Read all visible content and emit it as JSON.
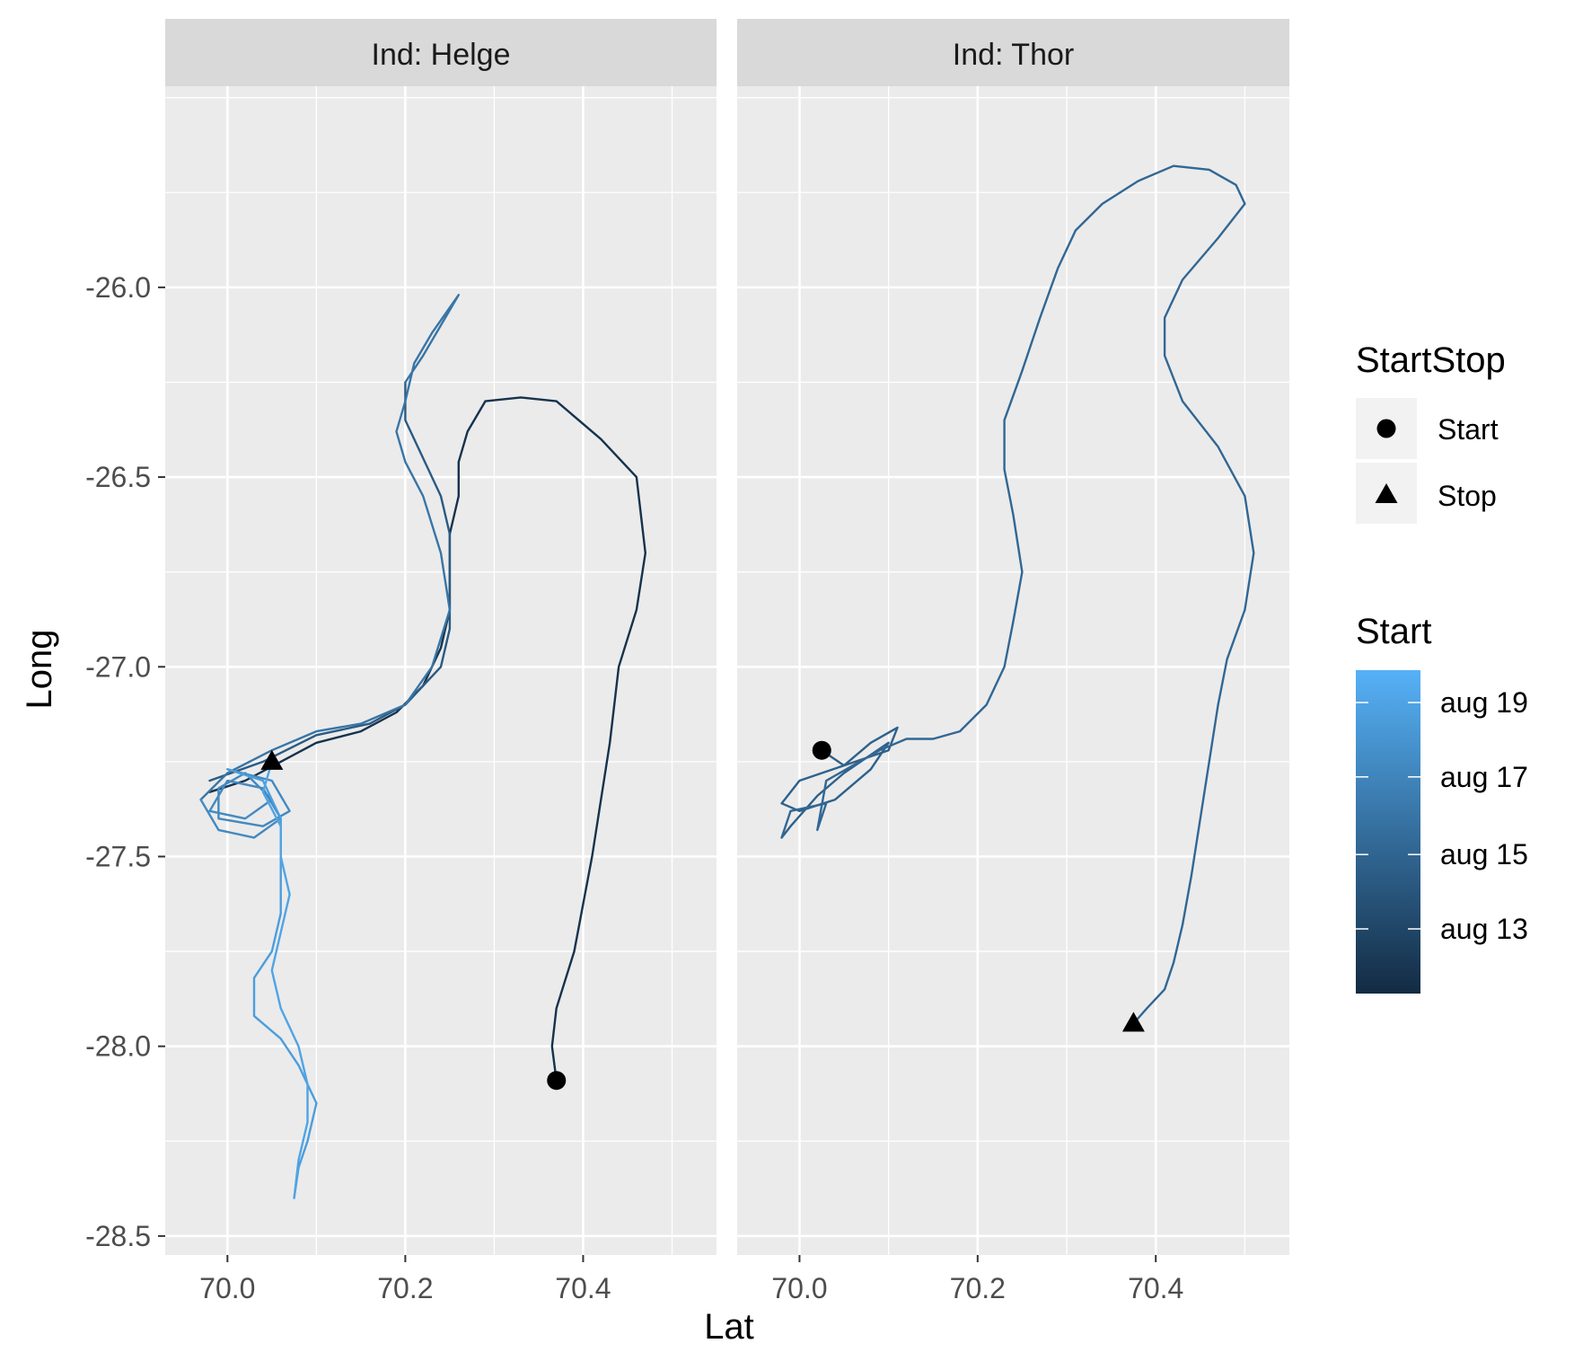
{
  "chart_data": {
    "type": "line",
    "xlabel": "Lat",
    "ylabel": "Long",
    "xlim": [
      69.93,
      70.55
    ],
    "ylim": [
      -28.55,
      -25.47
    ],
    "x_ticks": [
      70.0,
      70.2,
      70.4
    ],
    "x_tick_labels": [
      "70.0",
      "70.2",
      "70.4"
    ],
    "y_ticks": [
      -26.0,
      -26.5,
      -27.0,
      -27.5,
      -28.0,
      -28.5
    ],
    "y_tick_labels": [
      "-26.0",
      "-26.5",
      "-27.0",
      "-27.5",
      "-28.0",
      "-28.5"
    ],
    "grid": true,
    "legend_placement": "right",
    "colors": {
      "panel_bg": "#ebebeb",
      "strip_bg": "#d9d9d9",
      "grid": "#ffffff",
      "dark": "#132b43",
      "light": "#56b1f7"
    },
    "panels": [
      {
        "strip_label": "Ind: Helge",
        "tracks": [
          {
            "t": 0.05,
            "points": [
              [
                70.37,
                -28.09
              ],
              [
                70.365,
                -28.0
              ],
              [
                70.37,
                -27.9
              ],
              [
                70.39,
                -27.75
              ],
              [
                70.41,
                -27.5
              ],
              [
                70.43,
                -27.2
              ],
              [
                70.44,
                -27.0
              ],
              [
                70.46,
                -26.85
              ],
              [
                70.47,
                -26.7
              ],
              [
                70.46,
                -26.5
              ],
              [
                70.42,
                -26.4
              ],
              [
                70.37,
                -26.3
              ],
              [
                70.33,
                -26.29
              ],
              [
                70.29,
                -26.3
              ],
              [
                70.27,
                -26.38
              ],
              [
                70.26,
                -26.46
              ],
              [
                70.26,
                -26.55
              ],
              [
                70.25,
                -26.65
              ],
              [
                70.25,
                -26.75
              ],
              [
                70.25,
                -26.85
              ],
              [
                70.24,
                -26.95
              ],
              [
                70.22,
                -27.05
              ],
              [
                70.19,
                -27.12
              ],
              [
                70.15,
                -27.17
              ],
              [
                70.1,
                -27.2
              ],
              [
                70.06,
                -27.25
              ],
              [
                70.02,
                -27.3
              ],
              [
                69.98,
                -27.33
              ]
            ]
          },
          {
            "t": 0.35,
            "points": [
              [
                69.98,
                -27.3
              ],
              [
                70.04,
                -27.25
              ],
              [
                70.1,
                -27.18
              ],
              [
                70.16,
                -27.15
              ],
              [
                70.2,
                -27.1
              ],
              [
                70.24,
                -27.0
              ],
              [
                70.25,
                -26.9
              ],
              [
                70.25,
                -26.8
              ],
              [
                70.25,
                -26.65
              ],
              [
                70.24,
                -26.55
              ],
              [
                70.22,
                -26.45
              ],
              [
                70.2,
                -26.35
              ],
              [
                70.2,
                -26.25
              ]
            ]
          },
          {
            "t": 0.55,
            "points": [
              [
                70.2,
                -26.25
              ],
              [
                70.22,
                -26.18
              ],
              [
                70.24,
                -26.1
              ],
              [
                70.26,
                -26.02
              ],
              [
                70.23,
                -26.12
              ],
              [
                70.21,
                -26.2
              ],
              [
                70.2,
                -26.3
              ],
              [
                70.19,
                -26.38
              ],
              [
                70.2,
                -26.46
              ],
              [
                70.22,
                -26.55
              ],
              [
                70.24,
                -26.7
              ],
              [
                70.25,
                -26.85
              ],
              [
                70.23,
                -27.0
              ],
              [
                70.2,
                -27.1
              ],
              [
                70.15,
                -27.15
              ],
              [
                70.1,
                -27.17
              ],
              [
                70.05,
                -27.22
              ],
              [
                70.0,
                -27.28
              ],
              [
                69.97,
                -27.35
              ]
            ]
          },
          {
            "t": 0.7,
            "points": [
              [
                69.97,
                -27.35
              ],
              [
                69.99,
                -27.43
              ],
              [
                70.03,
                -27.45
              ],
              [
                70.06,
                -27.4
              ],
              [
                70.04,
                -27.32
              ],
              [
                70.0,
                -27.3
              ],
              [
                69.98,
                -27.38
              ],
              [
                70.02,
                -27.4
              ],
              [
                70.05,
                -27.35
              ],
              [
                70.02,
                -27.28
              ],
              [
                69.99,
                -27.32
              ],
              [
                69.99,
                -27.4
              ],
              [
                70.04,
                -27.42
              ],
              [
                70.07,
                -27.38
              ],
              [
                70.05,
                -27.3
              ],
              [
                70.0,
                -27.27
              ]
            ]
          },
          {
            "t": 0.85,
            "points": [
              [
                70.0,
                -27.27
              ],
              [
                70.04,
                -27.3
              ],
              [
                70.06,
                -27.4
              ],
              [
                70.06,
                -27.48
              ],
              [
                70.06,
                -27.55
              ],
              [
                70.06,
                -27.65
              ],
              [
                70.05,
                -27.75
              ],
              [
                70.03,
                -27.82
              ],
              [
                70.03,
                -27.92
              ],
              [
                70.06,
                -27.98
              ],
              [
                70.08,
                -28.05
              ],
              [
                70.1,
                -28.15
              ],
              [
                70.09,
                -28.25
              ],
              [
                70.08,
                -28.32
              ],
              [
                70.075,
                -28.4
              ]
            ]
          },
          {
            "t": 0.9,
            "points": [
              [
                70.075,
                -28.4
              ],
              [
                70.08,
                -28.3
              ],
              [
                70.09,
                -28.2
              ],
              [
                70.09,
                -28.1
              ],
              [
                70.08,
                -28.0
              ],
              [
                70.06,
                -27.9
              ],
              [
                70.05,
                -27.8
              ],
              [
                70.06,
                -27.7
              ],
              [
                70.07,
                -27.6
              ],
              [
                70.06,
                -27.5
              ],
              [
                70.06,
                -27.42
              ],
              [
                70.04,
                -27.33
              ],
              [
                70.05,
                -27.25
              ]
            ]
          }
        ],
        "start": [
          70.37,
          -28.09
        ],
        "stop": [
          70.05,
          -27.25
        ]
      },
      {
        "strip_label": "Ind: Thor",
        "tracks": [
          {
            "t": 0.4,
            "points": [
              [
                70.025,
                -27.22
              ],
              [
                70.05,
                -27.26
              ],
              [
                70.08,
                -27.2
              ],
              [
                70.11,
                -27.16
              ],
              [
                70.1,
                -27.22
              ],
              [
                70.05,
                -27.26
              ],
              [
                70.0,
                -27.3
              ],
              [
                69.98,
                -27.36
              ],
              [
                70.0,
                -27.38
              ],
              [
                70.04,
                -27.35
              ],
              [
                70.08,
                -27.27
              ],
              [
                70.1,
                -27.2
              ],
              [
                70.05,
                -27.28
              ],
              [
                70.02,
                -27.34
              ],
              [
                69.99,
                -27.42
              ],
              [
                69.98,
                -27.45
              ]
            ]
          },
          {
            "t": 0.45,
            "points": [
              [
                69.98,
                -27.45
              ],
              [
                69.99,
                -27.38
              ],
              [
                70.03,
                -27.36
              ],
              [
                70.02,
                -27.43
              ],
              [
                70.03,
                -27.3
              ],
              [
                70.06,
                -27.26
              ],
              [
                70.09,
                -27.22
              ],
              [
                70.12,
                -27.19
              ],
              [
                70.15,
                -27.19
              ],
              [
                70.18,
                -27.17
              ],
              [
                70.21,
                -27.1
              ],
              [
                70.23,
                -27.0
              ],
              [
                70.24,
                -26.88
              ],
              [
                70.25,
                -26.75
              ],
              [
                70.24,
                -26.6
              ],
              [
                70.23,
                -26.48
              ],
              [
                70.23,
                -26.35
              ],
              [
                70.25,
                -26.22
              ],
              [
                70.27,
                -26.08
              ],
              [
                70.29,
                -25.95
              ],
              [
                70.31,
                -25.85
              ],
              [
                70.34,
                -25.78
              ],
              [
                70.38,
                -25.72
              ],
              [
                70.42,
                -25.68
              ],
              [
                70.46,
                -25.69
              ],
              [
                70.49,
                -25.73
              ],
              [
                70.5,
                -25.78
              ],
              [
                70.47,
                -25.87
              ],
              [
                70.43,
                -25.98
              ],
              [
                70.41,
                -26.08
              ],
              [
                70.41,
                -26.18
              ],
              [
                70.43,
                -26.3
              ],
              [
                70.47,
                -26.42
              ],
              [
                70.5,
                -26.55
              ],
              [
                70.51,
                -26.7
              ],
              [
                70.5,
                -26.85
              ],
              [
                70.48,
                -26.98
              ],
              [
                70.47,
                -27.1
              ],
              [
                70.46,
                -27.25
              ],
              [
                70.45,
                -27.4
              ],
              [
                70.44,
                -27.55
              ],
              [
                70.43,
                -27.68
              ],
              [
                70.42,
                -27.78
              ],
              [
                70.41,
                -27.85
              ],
              [
                70.39,
                -27.9
              ],
              [
                70.375,
                -27.94
              ]
            ]
          }
        ],
        "start": [
          70.025,
          -27.22
        ],
        "stop": [
          70.375,
          -27.94
        ]
      }
    ],
    "legend_shape": {
      "title": "StartStop",
      "entries": [
        {
          "label": "Start",
          "shape": "circle"
        },
        {
          "label": "Stop",
          "shape": "triangle"
        }
      ]
    },
    "legend_color": {
      "title": "Start",
      "labels": [
        "aug 19",
        "aug 17",
        "aug 15",
        "aug 13"
      ],
      "label_positions": [
        0.9,
        0.67,
        0.43,
        0.2
      ],
      "low": "#132b43",
      "high": "#56b1f7"
    }
  }
}
